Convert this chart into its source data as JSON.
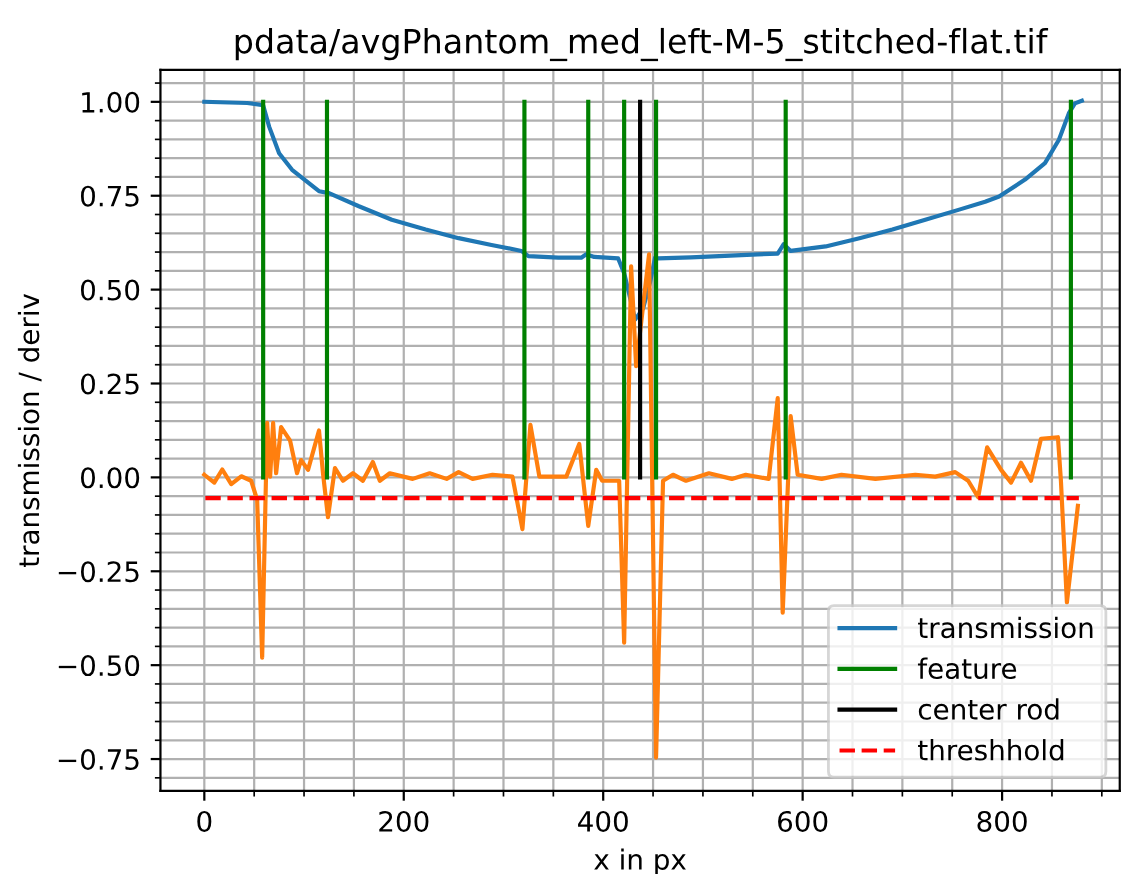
{
  "chart_data": {
    "type": "line",
    "title": "pdata/avgPhantom_med_left-M-5_stitched-flat.tif",
    "xlabel": "x in px",
    "ylabel": "transmission / deriv",
    "xlim": [
      -44,
      918
    ],
    "xticks": [
      0,
      200,
      400,
      600,
      800
    ],
    "ylim": [
      -0.835,
      1.085
    ],
    "yticks": [
      {
        "value": -0.75,
        "label": "−0.75"
      },
      {
        "value": -0.5,
        "label": "−0.50"
      },
      {
        "value": -0.25,
        "label": "−0.25"
      },
      {
        "value": 0,
        "label": "0.00"
      },
      {
        "value": 0.25,
        "label": "0.25"
      },
      {
        "value": 0.5,
        "label": "0.50"
      },
      {
        "value": 0.75,
        "label": "0.75"
      },
      {
        "value": 1,
        "label": "1.00"
      }
    ],
    "grid": true,
    "legend": "bottom right",
    "marker": "none",
    "series": [
      {
        "name": "transmission",
        "color": "#1f77b4",
        "line_style": "solid",
        "x": [
          0,
          43,
          59,
          65,
          75,
          88,
          115,
          125,
          155,
          188,
          222,
          255,
          288,
          318,
          325,
          355,
          378,
          383,
          391,
          415,
          421,
          425,
          432,
          440,
          447,
          452,
          455,
          488,
          522,
          555,
          575,
          581,
          588,
          623,
          657,
          690,
          723,
          757,
          783,
          797,
          823,
          843,
          857,
          867,
          873,
          880
        ],
        "values": [
          1.0,
          0.997,
          0.991,
          0.934,
          0.863,
          0.819,
          0.762,
          0.757,
          0.722,
          0.686,
          0.66,
          0.637,
          0.619,
          0.603,
          0.589,
          0.585,
          0.585,
          0.594,
          0.587,
          0.583,
          0.544,
          0.5,
          0.42,
          0.45,
          0.52,
          0.585,
          0.583,
          0.586,
          0.59,
          0.594,
          0.596,
          0.621,
          0.603,
          0.615,
          0.637,
          0.66,
          0.686,
          0.713,
          0.734,
          0.748,
          0.793,
          0.837,
          0.899,
          0.97,
          0.996,
          1.003
        ]
      },
      {
        "color": "#ff7f0e",
        "line_style": "solid",
        "x": [
          0,
          10,
          18,
          27,
          37,
          47,
          53,
          58,
          63,
          66,
          69,
          72,
          77,
          86,
          93,
          97,
          104,
          115,
          119,
          124,
          131,
          139,
          149,
          159,
          169,
          176,
          186,
          209,
          226,
          243,
          255,
          269,
          289,
          309,
          319,
          327,
          336,
          363,
          376,
          385,
          393,
          399,
          416,
          421,
          428,
          433,
          446,
          453,
          460,
          470,
          483,
          506,
          529,
          543,
          566,
          575,
          580,
          588,
          595,
          619,
          639,
          673,
          713,
          733,
          753,
          766,
          776,
          785,
          799,
          809,
          819,
          829,
          839,
          856,
          859,
          865,
          876
        ],
        "values": [
          0.007,
          -0.014,
          0.021,
          -0.018,
          0.003,
          -0.009,
          -0.06,
          -0.48,
          0.145,
          0.002,
          0.145,
          0.011,
          0.134,
          0.098,
          0.011,
          0.046,
          0.02,
          0.125,
          0.011,
          -0.106,
          0.025,
          -0.009,
          0.011,
          -0.009,
          0.041,
          -0.009,
          0.011,
          -0.004,
          0.011,
          -0.004,
          0.014,
          -0.004,
          0.007,
          0.002,
          -0.138,
          0.14,
          0.002,
          0.002,
          0.089,
          -0.129,
          0.02,
          -0.009,
          -0.009,
          -0.44,
          0.562,
          0.296,
          0.594,
          -0.746,
          -0.009,
          0.007,
          -0.009,
          0.011,
          -0.004,
          0.007,
          -0.004,
          0.211,
          -0.36,
          0.163,
          0.007,
          -0.004,
          0.007,
          -0.004,
          0.007,
          0.002,
          0.014,
          -0.009,
          -0.053,
          0.08,
          0.02,
          -0.014,
          0.039,
          -0.009,
          0.103,
          0.107,
          -0.009,
          -0.333,
          -0.076
        ]
      },
      {
        "name": "feature",
        "color": "#008000",
        "line_style": "solid",
        "x": [
          59,
          59
        ],
        "values": [
          0,
          1
        ]
      },
      {
        "color": "#008000",
        "line_style": "solid",
        "x": [
          123,
          123
        ],
        "values": [
          0,
          1
        ]
      },
      {
        "color": "#008000",
        "line_style": "solid",
        "x": [
          321,
          321
        ],
        "values": [
          0,
          1
        ]
      },
      {
        "color": "#008000",
        "line_style": "solid",
        "x": [
          385,
          385
        ],
        "values": [
          0,
          1
        ]
      },
      {
        "color": "#008000",
        "line_style": "solid",
        "x": [
          421,
          421
        ],
        "values": [
          0,
          1
        ]
      },
      {
        "color": "#008000",
        "line_style": "solid",
        "x": [
          453,
          453
        ],
        "values": [
          0,
          1
        ]
      },
      {
        "color": "#008000",
        "line_style": "solid",
        "x": [
          583,
          583
        ],
        "values": [
          0,
          1
        ]
      },
      {
        "color": "#008000",
        "line_style": "solid",
        "x": [
          869,
          869
        ],
        "values": [
          0,
          1
        ]
      },
      {
        "name": "center rod",
        "color": "#000000",
        "line_style": "solid",
        "x": [
          437,
          437
        ],
        "values": [
          0,
          1
        ]
      },
      {
        "name": "threshhold",
        "color": "#ff0000",
        "line_style": "dashed",
        "x": [
          1,
          877
        ],
        "values": [
          -0.055,
          -0.055
        ]
      }
    ]
  }
}
